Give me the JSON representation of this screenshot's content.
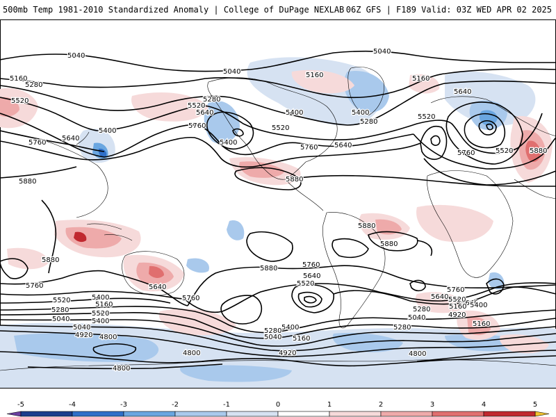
{
  "header": {
    "left": "500mb Temp 1981-2010 Standardized Anomaly | College of DuPage NEXLAB",
    "right": "06Z GFS | F189 Valid: 03Z WED APR 02 2025"
  },
  "colors": {
    "contour": "#000000",
    "coast": "#000000",
    "cold_1": "#d6e2f2",
    "cold_2": "#a9c9ec",
    "cold_3": "#6aa6e0",
    "cold_4": "#2f6fc8",
    "cold_5": "#1c3e8c",
    "warm_1": "#f6dada",
    "warm_2": "#eeaaaa",
    "warm_3": "#e06f6f",
    "warm_4": "#c0282f",
    "warm_5": "#8b0a14"
  },
  "contours": {
    "labels": [
      {
        "text": "5040"
      },
      {
        "text": "5040"
      },
      {
        "text": "5040"
      },
      {
        "text": "5160"
      },
      {
        "text": "5160"
      },
      {
        "text": "5160"
      },
      {
        "text": "5280"
      },
      {
        "text": "5520"
      },
      {
        "text": "5280"
      },
      {
        "text": "5520"
      },
      {
        "text": "5640"
      },
      {
        "text": "5400"
      },
      {
        "text": "5760"
      },
      {
        "text": "5640"
      },
      {
        "text": "5760"
      },
      {
        "text": "5400"
      },
      {
        "text": "5400"
      },
      {
        "text": "5520"
      },
      {
        "text": "5400"
      },
      {
        "text": "5280"
      },
      {
        "text": "5760"
      },
      {
        "text": "5640"
      },
      {
        "text": "5520"
      },
      {
        "text": "5640"
      },
      {
        "text": "5760"
      },
      {
        "text": "5520"
      },
      {
        "text": "5880"
      },
      {
        "text": "5880"
      },
      {
        "text": "5880"
      },
      {
        "text": "5880"
      },
      {
        "text": "5880"
      },
      {
        "text": "5880"
      },
      {
        "text": "5880"
      },
      {
        "text": "5760"
      },
      {
        "text": "5640"
      },
      {
        "text": "5760"
      },
      {
        "text": "5760"
      },
      {
        "text": "5640"
      },
      {
        "text": "5520"
      },
      {
        "text": "5640"
      },
      {
        "text": "5760"
      },
      {
        "text": "5640"
      },
      {
        "text": "5520"
      },
      {
        "text": "5400"
      },
      {
        "text": "5280"
      },
      {
        "text": "5160"
      },
      {
        "text": "5040"
      },
      {
        "text": "5520"
      },
      {
        "text": "5400"
      },
      {
        "text": "5160"
      },
      {
        "text": "5280"
      },
      {
        "text": "5040"
      },
      {
        "text": "4920"
      },
      {
        "text": "5400"
      },
      {
        "text": "5280"
      },
      {
        "text": "5040"
      },
      {
        "text": "5160"
      },
      {
        "text": "4920"
      },
      {
        "text": "4800"
      },
      {
        "text": "4800"
      },
      {
        "text": "4800"
      },
      {
        "text": "4800"
      },
      {
        "text": "5040"
      },
      {
        "text": "4920"
      },
      {
        "text": "5520"
      },
      {
        "text": "5400"
      },
      {
        "text": "5160"
      },
      {
        "text": "5280"
      }
    ]
  },
  "colorbar": {
    "ticks": [
      "-5",
      "-4",
      "-3",
      "-2",
      "-1",
      "0",
      "1",
      "2",
      "3",
      "4",
      "5"
    ],
    "range": [
      -5,
      5
    ]
  }
}
